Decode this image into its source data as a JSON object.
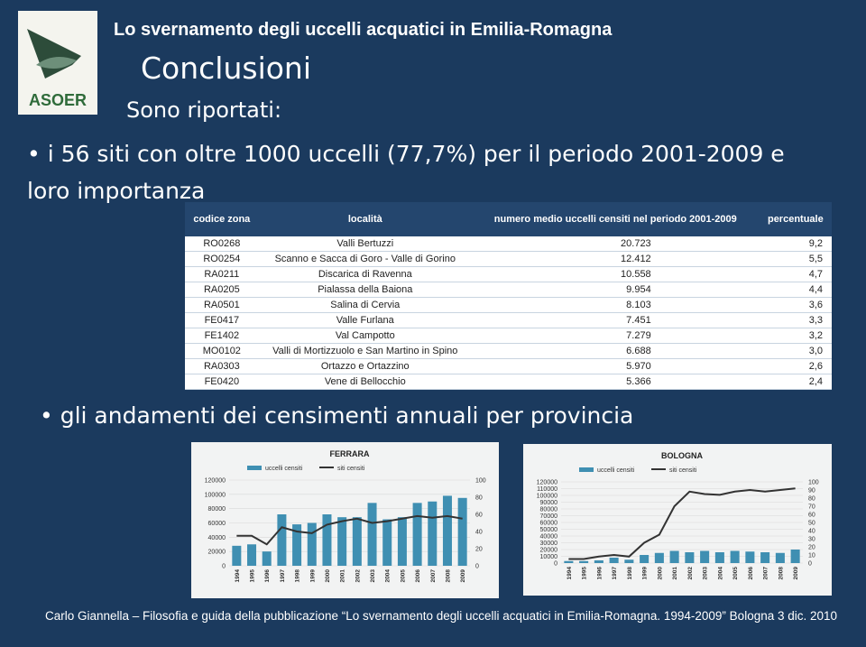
{
  "header": {
    "title": "Lo svernamento degli uccelli acquatici in Emilia-Romagna",
    "logo_text": "ASOER"
  },
  "heading": "Conclusioni",
  "subtitle": "Sono riportati:",
  "bullets": [
    "i 56 siti con oltre 1000 uccelli (77,7%) per il periodo 2001-2009 e loro importanza",
    "gli andamenti dei censimenti annuali  per provincia"
  ],
  "table": {
    "header": [
      "codice zona",
      "località",
      "numero medio uccelli censiti nel periodo 2001-2009",
      "percentuale"
    ],
    "rows": [
      [
        "RO0268",
        "Valli Bertuzzi",
        "20.723",
        "9,2"
      ],
      [
        "RO0254",
        "Scanno e Sacca di Goro - Valle di Gorino",
        "12.412",
        "5,5"
      ],
      [
        "RA0211",
        "Discarica di Ravenna",
        "10.558",
        "4,7"
      ],
      [
        "RA0205",
        "Pialassa della Baiona",
        "9.954",
        "4,4"
      ],
      [
        "RA0501",
        "Salina di Cervia",
        "8.103",
        "3,6"
      ],
      [
        "FE0417",
        "Valle Furlana",
        "7.451",
        "3,3"
      ],
      [
        "FE1402",
        "Val Campotto",
        "7.279",
        "3,2"
      ],
      [
        "MO0102",
        "Valli di Mortizzuolo e San Martino in Spino",
        "6.688",
        "3,0"
      ],
      [
        "RA0303",
        "Ortazzo e Ortazzino",
        "5.970",
        "2,6"
      ],
      [
        "FE0420",
        "Vene di Bellocchio",
        "5.366",
        "2,4"
      ]
    ]
  },
  "charts": [
    {
      "type": "bar",
      "title": "FERRARA",
      "categories": [
        "1994",
        "1995",
        "1996",
        "1997",
        "1998",
        "1999",
        "2000",
        "2001",
        "2002",
        "2003",
        "2004",
        "2005",
        "2006",
        "2007",
        "2008",
        "2009"
      ],
      "series": [
        {
          "name": "uccelli censiti",
          "color": "#3f8fb2",
          "values": [
            28000,
            30000,
            20000,
            72000,
            58000,
            60000,
            72000,
            68000,
            68000,
            88000,
            65000,
            68000,
            88000,
            90000,
            98000,
            95000
          ]
        },
        {
          "name": "siti censiti",
          "color": "#333333",
          "axis": "y2",
          "values": [
            35,
            35,
            25,
            45,
            40,
            38,
            48,
            52,
            55,
            50,
            52,
            55,
            58,
            56,
            58,
            55
          ]
        }
      ],
      "ylim": [
        0,
        120000
      ],
      "yticks": [
        0,
        20000,
        40000,
        60000,
        80000,
        100000,
        120000
      ],
      "y2lim": [
        0,
        100
      ],
      "y2ticks": [
        0,
        20,
        40,
        60,
        80,
        100
      ]
    },
    {
      "type": "bar",
      "title": "BOLOGNA",
      "categories": [
        "1994",
        "1995",
        "1996",
        "1997",
        "1998",
        "1999",
        "2000",
        "2001",
        "2002",
        "2003",
        "2004",
        "2005",
        "2006",
        "2007",
        "2008",
        "2009"
      ],
      "series": [
        {
          "name": "uccelli censiti",
          "color": "#3f8fb2",
          "values": [
            3000,
            3000,
            4000,
            8000,
            5000,
            12000,
            15000,
            18000,
            16000,
            18000,
            16000,
            18000,
            17000,
            16000,
            15000,
            20000
          ]
        },
        {
          "name": "siti censiti",
          "color": "#333333",
          "axis": "y2",
          "values": [
            5,
            5,
            8,
            10,
            8,
            25,
            35,
            70,
            88,
            85,
            84,
            88,
            90,
            88,
            90,
            92
          ]
        }
      ],
      "ylim": [
        0,
        120000
      ],
      "yticks": [
        0,
        10000,
        20000,
        30000,
        40000,
        50000,
        60000,
        70000,
        80000,
        90000,
        100000,
        110000,
        120000
      ],
      "y2lim": [
        0,
        100
      ],
      "y2ticks": [
        0,
        10,
        20,
        30,
        40,
        50,
        60,
        70,
        80,
        90,
        100
      ]
    }
  ],
  "footer": "Carlo Giannella – Filosofia e guida della pubblicazione  “Lo svernamento degli uccelli acquatici in Emilia-Romagna. 1994-2009” Bologna 3 dic. 2010"
}
